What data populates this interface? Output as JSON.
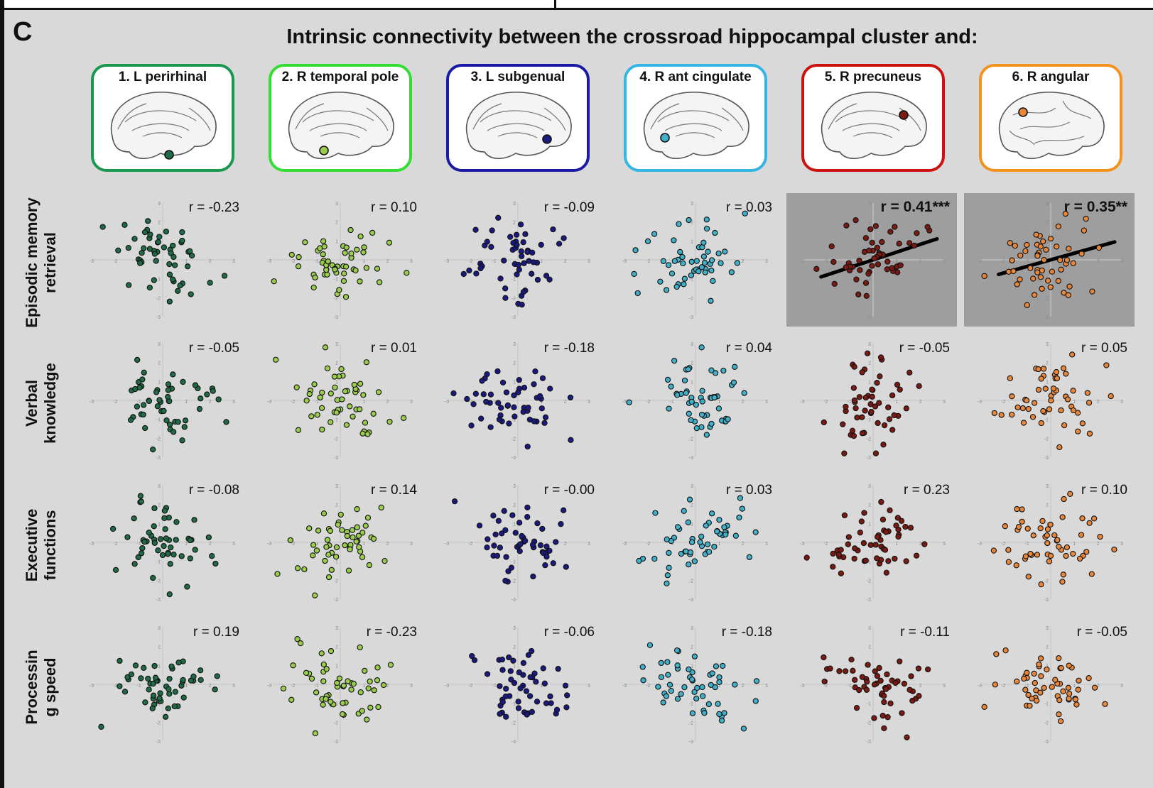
{
  "panel_letter": "C",
  "title": "Intrinsic connectivity between the crossroad hippocampal cluster and:",
  "colors": {
    "background": "#d9d9d9",
    "highlight_background": "#9e9e9e",
    "regression_line": "#000000"
  },
  "regions": [
    {
      "label": "1. L perirhinal",
      "border": "#1a9850",
      "dot": "#1f6b45",
      "brain_view": "medial",
      "marker": "bottom-temporal"
    },
    {
      "label": "2. R temporal pole",
      "border": "#33dd33",
      "dot": "#9acd4c",
      "brain_view": "medial",
      "marker": "temporal-pole"
    },
    {
      "label": "3. L subgenual",
      "border": "#1a1aa6",
      "dot": "#1a1a80",
      "brain_view": "medial",
      "marker": "subgenual"
    },
    {
      "label": "4. R ant cingulate",
      "border": "#33b5e5",
      "dot": "#40b0c8",
      "brain_view": "medial",
      "marker": "anterior-cingulate"
    },
    {
      "label": "5. R precuneus",
      "border": "#cc1111",
      "dot": "#7a1a12",
      "brain_view": "medial",
      "marker": "precuneus"
    },
    {
      "label": "6. R angular",
      "border": "#f29320",
      "dot": "#e8863a",
      "brain_view": "lateral",
      "marker": "angular"
    }
  ],
  "rows": [
    {
      "label_lines": [
        "Episodic memory",
        "retrieval"
      ]
    },
    {
      "label_lines": [
        "Verbal",
        "knowledge"
      ]
    },
    {
      "label_lines": [
        "Executive",
        "functions"
      ]
    },
    {
      "label_lines": [
        "Processin",
        "g speed"
      ]
    }
  ],
  "chart_data": {
    "type": "scatter",
    "grid": false,
    "n_points_per_panel": 52,
    "x_axis": {
      "ticks": [
        -3,
        -2,
        -1,
        0,
        1,
        2,
        3
      ],
      "range": [
        -3,
        3
      ]
    },
    "y_axis": {
      "ticks": [
        -3,
        -2,
        -1,
        0,
        1,
        2,
        3
      ],
      "range": [
        -3,
        3
      ]
    },
    "panels": [
      [
        {
          "r_label": "r = -0.23",
          "r": -0.23,
          "highlight": false,
          "regression": false
        },
        {
          "r_label": "r = 0.10",
          "r": 0.1,
          "highlight": false,
          "regression": false
        },
        {
          "r_label": "r = -0.09",
          "r": -0.09,
          "highlight": false,
          "regression": false
        },
        {
          "r_label": "r = 0.03",
          "r": 0.03,
          "highlight": false,
          "regression": false
        },
        {
          "r_label": "r = 0.41***",
          "r": 0.41,
          "highlight": true,
          "regression": true
        },
        {
          "r_label": "r = 0.35**",
          "r": 0.35,
          "highlight": true,
          "regression": true
        }
      ],
      [
        {
          "r_label": "r = -0.05",
          "r": -0.05,
          "highlight": false,
          "regression": false
        },
        {
          "r_label": "r = 0.01",
          "r": 0.01,
          "highlight": false,
          "regression": false
        },
        {
          "r_label": "r = -0.18",
          "r": -0.18,
          "highlight": false,
          "regression": false
        },
        {
          "r_label": "r = 0.04",
          "r": 0.04,
          "highlight": false,
          "regression": false
        },
        {
          "r_label": "r = -0.05",
          "r": -0.05,
          "highlight": false,
          "regression": false
        },
        {
          "r_label": "r = 0.05",
          "r": 0.05,
          "highlight": false,
          "regression": false
        }
      ],
      [
        {
          "r_label": "r = -0.08",
          "r": -0.08,
          "highlight": false,
          "regression": false
        },
        {
          "r_label": "r = 0.14",
          "r": 0.14,
          "highlight": false,
          "regression": false
        },
        {
          "r_label": "r = -0.00",
          "r": 0.0,
          "highlight": false,
          "regression": false
        },
        {
          "r_label": "r = 0.03",
          "r": 0.03,
          "highlight": false,
          "regression": false
        },
        {
          "r_label": "r = 0.23",
          "r": 0.23,
          "highlight": false,
          "regression": false
        },
        {
          "r_label": "r = 0.10",
          "r": 0.1,
          "highlight": false,
          "regression": false
        }
      ],
      [
        {
          "r_label": "r = 0.19",
          "r": 0.19,
          "highlight": false,
          "regression": false
        },
        {
          "r_label": "r = -0.23",
          "r": -0.23,
          "highlight": false,
          "regression": false
        },
        {
          "r_label": "r = -0.06",
          "r": -0.06,
          "highlight": false,
          "regression": false
        },
        {
          "r_label": "r = -0.18",
          "r": -0.18,
          "highlight": false,
          "regression": false
        },
        {
          "r_label": "r = -0.11",
          "r": -0.11,
          "highlight": false,
          "regression": false
        },
        {
          "r_label": "r = -0.05",
          "r": -0.05,
          "highlight": false,
          "regression": false
        }
      ]
    ]
  }
}
